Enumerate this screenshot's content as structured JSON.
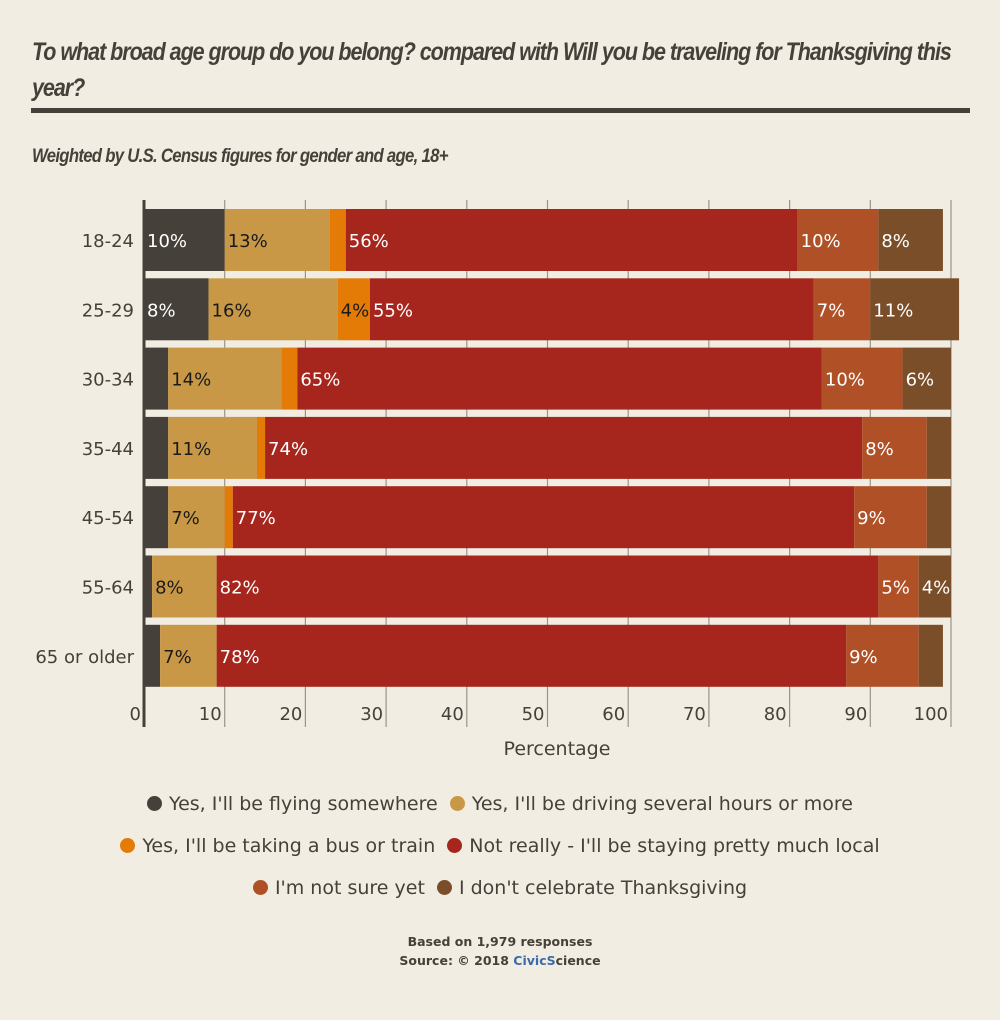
{
  "header": {
    "title": "To what broad age group do you belong? compared with Will you be traveling for Thanksgiving this year?",
    "subtitle": "Weighted by U.S. Census figures for gender and age, 18+"
  },
  "chart_data": {
    "type": "bar",
    "orientation": "horizontal",
    "stacked": true,
    "title": "To what broad age group do you belong? compared with Will you be traveling for Thanksgiving this year?",
    "subtitle": "Weighted by U.S. Census figures for gender and age, 18+",
    "xlabel": "Percentage",
    "ylabel": "",
    "xlim": [
      0,
      100
    ],
    "xticks": [
      0,
      10,
      20,
      30,
      40,
      50,
      60,
      70,
      80,
      90,
      100
    ],
    "grid": true,
    "legend_position": "bottom",
    "categories": [
      "18-24",
      "25-29",
      "30-34",
      "35-44",
      "45-54",
      "55-64",
      "65 or older"
    ],
    "series": [
      {
        "name": "Yes, I'll be flying somewhere",
        "color": "#45413a",
        "label_color": "#ffffff",
        "values": [
          10,
          8,
          3,
          3,
          3,
          1,
          2
        ],
        "labels": [
          "10%",
          "8%",
          "",
          "",
          "",
          "",
          ""
        ]
      },
      {
        "name": "Yes, I'll be driving several hours or more",
        "color": "#c99846",
        "label_color": "#1a1a1a",
        "values": [
          13,
          16,
          14,
          11,
          7,
          8,
          7
        ],
        "labels": [
          "13%",
          "16%",
          "14%",
          "11%",
          "7%",
          "8%",
          "7%"
        ]
      },
      {
        "name": "Yes, I'll be taking a bus or train",
        "color": "#e47b06",
        "label_color": "#1a1a1a",
        "values": [
          2,
          4,
          2,
          1,
          1,
          0,
          0
        ],
        "labels": [
          "",
          "4%",
          "",
          "",
          "",
          "",
          ""
        ]
      },
      {
        "name": "Not really - I'll be staying pretty much local",
        "color": "#a6261e",
        "label_color": "#ffffff",
        "values": [
          56,
          55,
          65,
          74,
          77,
          82,
          78
        ],
        "labels": [
          "56%",
          "55%",
          "65%",
          "74%",
          "77%",
          "82%",
          "78%"
        ]
      },
      {
        "name": "I'm not sure yet",
        "color": "#b05027",
        "label_color": "#ffffff",
        "values": [
          10,
          7,
          10,
          8,
          9,
          5,
          9
        ],
        "labels": [
          "10%",
          "7%",
          "10%",
          "8%",
          "9%",
          "5%",
          "9%"
        ]
      },
      {
        "name": "I don't celebrate Thanksgiving",
        "color": "#7b4e2a",
        "label_color": "#ffffff",
        "values": [
          8,
          11,
          6,
          3,
          3,
          4,
          3
        ],
        "labels": [
          "8%",
          "11%",
          "6%",
          "",
          "",
          "4%",
          ""
        ]
      }
    ]
  },
  "footer": {
    "responses": "Based on 1,979 responses",
    "source_prefix": "Source: © 2018 ",
    "brand_part1": "Civic",
    "brand_part2": "S",
    "brand_part3": "cience"
  }
}
